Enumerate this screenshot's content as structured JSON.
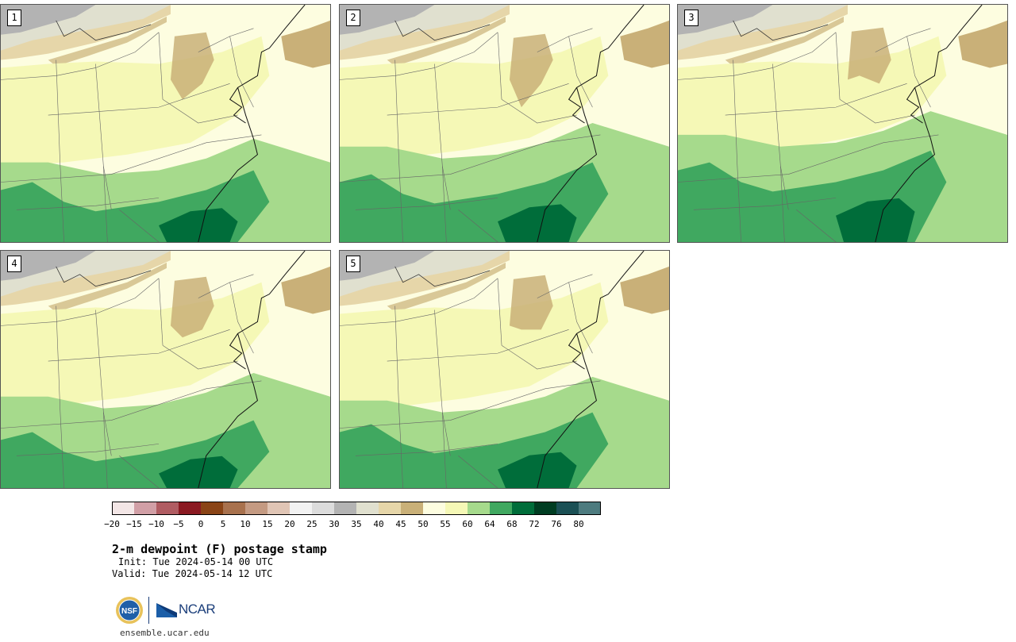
{
  "panels": [
    {
      "number": "1"
    },
    {
      "number": "2"
    },
    {
      "number": "3"
    },
    {
      "number": "4"
    },
    {
      "number": "5"
    }
  ],
  "colorbar": {
    "tick_labels": [
      "−20",
      "−15",
      "−10",
      "−5",
      "0",
      "5",
      "10",
      "15",
      "20",
      "25",
      "30",
      "35",
      "40",
      "45",
      "50",
      "55",
      "60",
      "64",
      "68",
      "72",
      "76",
      "80"
    ],
    "colors": [
      "#f3e6e6",
      "#d19fa6",
      "#b05c62",
      "#8b1a22",
      "#8a4416",
      "#a8714d",
      "#c49a82",
      "#e0c5b5",
      "#f2f2f2",
      "#dcdcdc",
      "#b3b3b3",
      "#e0e0cf",
      "#e6d6a9",
      "#c9b078",
      "#fdfde0",
      "#f5f8b6",
      "#a6da8c",
      "#40a860",
      "#006d3a",
      "#003d22",
      "#1b5055",
      "#4d7b7f"
    ]
  },
  "title": "2-m dewpoint (F) postage stamp",
  "init_text": "Init: Tue 2024-05-14 00 UTC",
  "valid_text": "Valid: Tue 2024-05-14 12 UTC",
  "logo": {
    "nsf": "NSF",
    "ncar": "NCAR"
  },
  "url": "ensemble.ucar.edu"
}
